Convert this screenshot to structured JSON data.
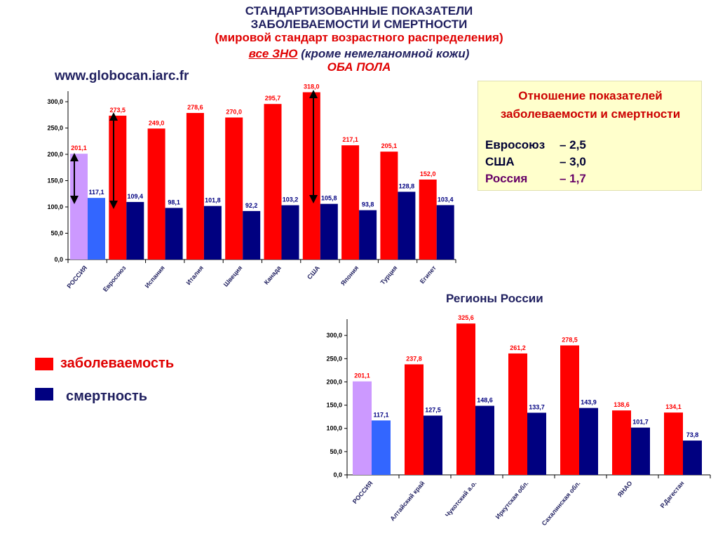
{
  "header": {
    "line1": "СТАНДАРТИЗОВАННЫЕ ПОКАЗАТЕЛИ",
    "line2": "ЗАБОЛЕВАЕМОСТИ И СМЕРТНОСТИ",
    "line3": "(мировой стандарт возрастного распределения)",
    "line4_highlight": "все ЗНО",
    "line4_rest": "(кроме немеланомной кожи)",
    "line5": "ОБА ПОЛА",
    "source": "www.globocan.iarc.fr"
  },
  "ratio_box": {
    "title": "Отношение показателей заболеваемости и смертности",
    "rows": [
      [
        "Евросоюз",
        "– 2,5"
      ],
      [
        "США",
        "– 3,0"
      ],
      [
        "Россия",
        "– 1,7"
      ]
    ]
  },
  "chart_data": [
    {
      "type": "bar",
      "categories": [
        "РОССИЯ",
        "Евросоюз",
        "Испания",
        "Италия",
        "Швеция",
        "Канада",
        "США",
        "Япония",
        "Турция",
        "Египет"
      ],
      "series": [
        {
          "name": "заболеваемость",
          "color": "#ff0000",
          "values": [
            201.1,
            273.5,
            249.0,
            278.6,
            270.0,
            295.7,
            318.0,
            217.1,
            205.1,
            152.0
          ],
          "value_labels": [
            "201,1",
            "273,5",
            "249,0",
            "278,6",
            "270,0",
            "295,7",
            "318,0",
            "217,1",
            "205,1",
            "152,0"
          ]
        },
        {
          "name": "смертность",
          "color": "#000080",
          "values": [
            117.1,
            109.4,
            98.1,
            101.8,
            92.2,
            103.2,
            105.8,
            93.8,
            128.8,
            103.4
          ],
          "value_labels": [
            "117,1",
            "109,4",
            "98,1",
            "101,8",
            "92,2",
            "103,2",
            "105,8",
            "93,8",
            "128,8",
            "103,4"
          ]
        }
      ],
      "highlight_index": 0,
      "highlight_colors": [
        "#cc99ff",
        "#3366ff"
      ],
      "ylim": [
        0,
        320
      ],
      "yticks": [
        {
          "value": 0,
          "label": "0,0"
        },
        {
          "value": 50,
          "label": "50,0"
        },
        {
          "value": 100,
          "label": "100,0"
        },
        {
          "value": 150,
          "label": "150,0"
        },
        {
          "value": 200,
          "label": "200,0"
        },
        {
          "value": 250,
          "label": "250,0"
        },
        {
          "value": 300,
          "label": "300,0"
        }
      ],
      "grid": false
    },
    {
      "type": "bar",
      "title": "Регионы России",
      "categories": [
        "РОССИЯ",
        "Алтайский край",
        "Чукотский а.о.",
        "Иркутская обл.",
        "Сахалинская обл.",
        "ЯНАО",
        "Р.Дагестан"
      ],
      "series": [
        {
          "color": "#ff0000",
          "values": [
            201.1,
            237.8,
            325.6,
            261.2,
            278.5,
            138.6,
            134.1
          ],
          "value_labels": [
            "201,1",
            "237,8",
            "325,6",
            "261,2",
            "278,5",
            "138,6",
            "134,1"
          ]
        },
        {
          "color": "#000080",
          "values": [
            117.1,
            127.5,
            148.6,
            133.7,
            143.9,
            101.7,
            73.8
          ],
          "value_labels": [
            "117,1",
            "127,5",
            "148,6",
            "133,7",
            "143,9",
            "101,7",
            "73,8"
          ]
        }
      ],
      "highlight_index": 0,
      "highlight_colors": [
        "#cc99ff",
        "#3366ff"
      ],
      "ylim": [
        0,
        335
      ],
      "yticks": [
        {
          "value": 0,
          "label": "0,0"
        },
        {
          "value": 50,
          "label": "50,0"
        },
        {
          "value": 100,
          "label": "100,0"
        },
        {
          "value": 150,
          "label": "150,0"
        },
        {
          "value": 200,
          "label": "200,0"
        },
        {
          "value": 250,
          "label": "250,0"
        },
        {
          "value": 300,
          "label": "300,0"
        }
      ],
      "grid": false
    }
  ]
}
